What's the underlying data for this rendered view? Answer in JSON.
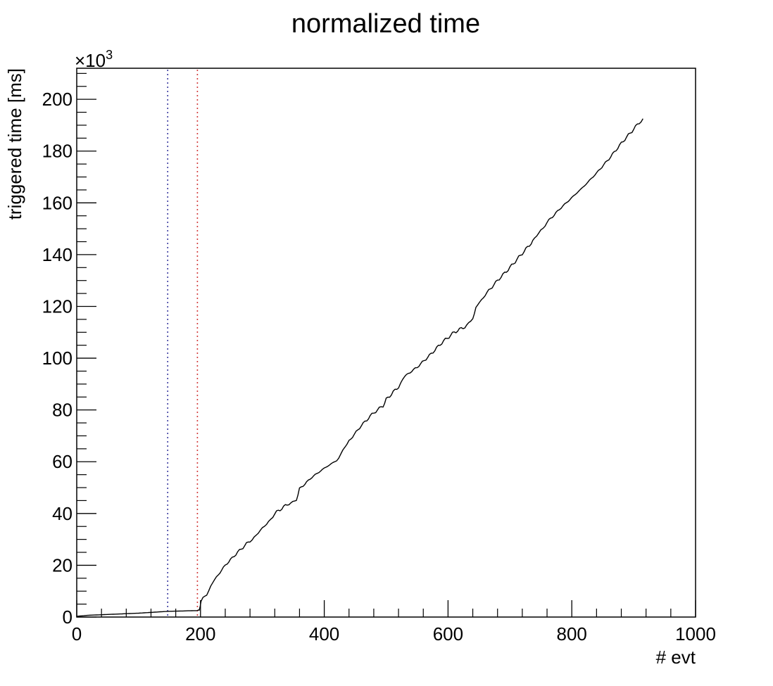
{
  "chart_data": {
    "type": "line",
    "title": "normalized time",
    "xlabel": "# evt",
    "ylabel": "triggered time [ms]",
    "y_exponent_label": "×10",
    "y_exponent_power": "3",
    "y_multiplier": 1000,
    "xlim": [
      0,
      1000
    ],
    "ylim": [
      0,
      212
    ],
    "x_ticks": [
      0,
      200,
      400,
      600,
      800,
      1000
    ],
    "x_tick_labels": [
      "0",
      "200",
      "400",
      "600",
      "800",
      "1000"
    ],
    "y_ticks": [
      0,
      20,
      40,
      60,
      80,
      100,
      120,
      140,
      160,
      180,
      200
    ],
    "y_tick_labels": [
      "0",
      "20",
      "40",
      "60",
      "80",
      "100",
      "120",
      "140",
      "160",
      "180",
      "200"
    ],
    "grid": false,
    "legend": "none",
    "colors": {
      "line": "#000000",
      "vline_blue": "#3a3aa0",
      "vline_red": "#d23a3a",
      "frame": "#000000"
    },
    "vertical_lines": [
      {
        "x": 147,
        "color": "#3a3aa0",
        "style": "dotted"
      },
      {
        "x": 195,
        "color": "#d23a3a",
        "style": "dotted"
      }
    ],
    "series": [
      {
        "x": [
          0,
          20,
          50,
          100,
          147,
          195,
          198,
          201,
          210,
          220,
          240,
          260,
          280,
          290,
          300,
          310,
          320,
          340,
          355,
          360,
          380,
          400,
          420,
          430,
          440,
          460,
          480,
          495,
          500,
          520,
          530,
          550,
          570,
          590,
          610,
          630,
          640,
          645,
          660,
          680,
          700,
          720,
          740,
          750,
          760,
          780,
          800,
          820,
          840,
          860,
          880,
          900,
          915
        ],
        "y": [
          0.3,
          0.7,
          1.0,
          1.5,
          2.2,
          2.5,
          3.0,
          6.0,
          9.0,
          13.5,
          20.0,
          25.0,
          29.5,
          31.5,
          34.0,
          37.0,
          40.0,
          43.5,
          45.0,
          49.5,
          54.0,
          57.5,
          60.5,
          64.0,
          68.0,
          74.0,
          79.0,
          81.5,
          84.0,
          89.0,
          93.0,
          96.5,
          101.0,
          106.0,
          110.0,
          112.5,
          115.0,
          119.5,
          124.5,
          130.0,
          135.0,
          140.5,
          146.0,
          149.5,
          152.5,
          157.5,
          162.0,
          166.5,
          171.5,
          177.0,
          183.0,
          188.5,
          192.5
        ]
      }
    ]
  }
}
